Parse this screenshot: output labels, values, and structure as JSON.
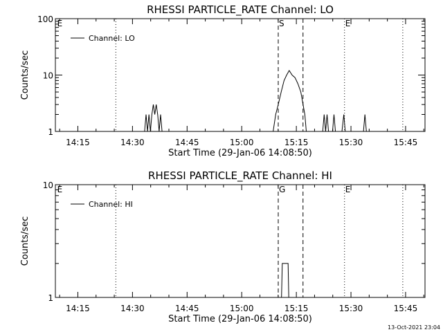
{
  "footer": {
    "timestamp": "13-Oct-2021 23:04"
  },
  "chart_data": [
    {
      "type": "line",
      "title": "RHESSI PARTICLE_RATE Channel: LO",
      "xlabel": "Start Time (29-Jan-06 14:08:50)",
      "ylabel": "Counts/sec",
      "yscale": "log",
      "ylim": [
        1,
        100
      ],
      "yticks": [
        "1",
        "10",
        "100"
      ],
      "xlim_minutes": [
        0,
        101.5
      ],
      "xticks": [
        "14:15",
        "14:30",
        "14:45",
        "15:00",
        "15:15",
        "15:30",
        "15:45"
      ],
      "xtick_minutes": [
        6.17,
        21.17,
        36.17,
        51.17,
        66.17,
        81.17,
        96.17
      ],
      "legend": {
        "position": "top-left",
        "entries": [
          "Channel: LO"
        ]
      },
      "markers": [
        {
          "label": "E",
          "minute": 0.3,
          "style": "none"
        },
        {
          "label": "",
          "minute": 16.6,
          "style": "dotted"
        },
        {
          "label": "S",
          "minute": 61.2,
          "style": "dashed"
        },
        {
          "label": "",
          "minute": 68.0,
          "style": "dashed"
        },
        {
          "label": "E",
          "minute": 79.4,
          "style": "dotted"
        },
        {
          "label": "",
          "minute": 95.4,
          "style": "dotted"
        }
      ],
      "series": [
        {
          "name": "Channel: LO",
          "points": [
            [
              24.5,
              1
            ],
            [
              24.9,
              2
            ],
            [
              25.3,
              1
            ],
            [
              25.7,
              2
            ],
            [
              26.1,
              1
            ],
            [
              26.5,
              2
            ],
            [
              26.9,
              3
            ],
            [
              27.3,
              2
            ],
            [
              27.7,
              3
            ],
            [
              28.1,
              2
            ],
            [
              28.5,
              1
            ],
            [
              28.9,
              2
            ],
            [
              29.3,
              1
            ],
            [
              59.8,
              1
            ],
            [
              60.5,
              2
            ],
            [
              61.2,
              3
            ],
            [
              62.0,
              5
            ],
            [
              62.8,
              8
            ],
            [
              63.5,
              10
            ],
            [
              64.2,
              12
            ],
            [
              65.0,
              10
            ],
            [
              65.8,
              9
            ],
            [
              66.6,
              7
            ],
            [
              67.4,
              5
            ],
            [
              68.0,
              3
            ],
            [
              68.5,
              2
            ],
            [
              68.9,
              1
            ],
            [
              73.4,
              1
            ],
            [
              73.8,
              2
            ],
            [
              74.2,
              1
            ],
            [
              74.6,
              2
            ],
            [
              75.0,
              1
            ],
            [
              76.1,
              1
            ],
            [
              76.5,
              2
            ],
            [
              76.9,
              1
            ],
            [
              78.7,
              1
            ],
            [
              79.2,
              2
            ],
            [
              79.6,
              1
            ],
            [
              84.6,
              1
            ],
            [
              85.0,
              2
            ],
            [
              85.4,
              1
            ]
          ]
        }
      ]
    },
    {
      "type": "line",
      "title": "RHESSI PARTICLE_RATE Channel: HI",
      "xlabel": "Start Time (29-Jan-06 14:08:50)",
      "ylabel": "Counts/sec",
      "yscale": "log",
      "ylim": [
        1,
        10
      ],
      "yticks": [
        "1",
        "10"
      ],
      "xlim_minutes": [
        0,
        101.5
      ],
      "xticks": [
        "14:15",
        "14:30",
        "14:45",
        "15:00",
        "15:15",
        "15:30",
        "15:45"
      ],
      "xtick_minutes": [
        6.17,
        21.17,
        36.17,
        51.17,
        66.17,
        81.17,
        96.17
      ],
      "legend": {
        "position": "top-left",
        "entries": [
          "Channel: HI"
        ]
      },
      "markers": [
        {
          "label": "E",
          "minute": 0.3,
          "style": "none"
        },
        {
          "label": "",
          "minute": 16.6,
          "style": "dotted"
        },
        {
          "label": "G",
          "minute": 61.2,
          "style": "dashed"
        },
        {
          "label": "",
          "minute": 68.0,
          "style": "dashed"
        },
        {
          "label": "E",
          "minute": 79.4,
          "style": "dotted"
        },
        {
          "label": "",
          "minute": 95.4,
          "style": "dotted"
        }
      ],
      "series": [
        {
          "name": "Channel: HI",
          "points": [
            [
              62.1,
              1
            ],
            [
              62.3,
              2
            ],
            [
              63.9,
              2
            ],
            [
              64.1,
              1
            ]
          ]
        }
      ]
    }
  ]
}
